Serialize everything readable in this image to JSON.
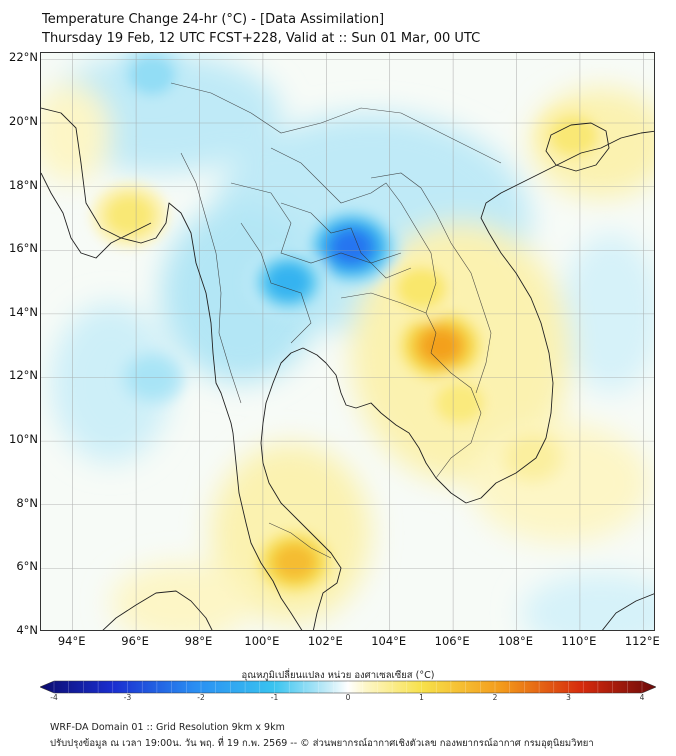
{
  "header": {
    "title": "Temperature Change 24-hr (°C) - [Data Assimilation]",
    "subtitle": "Thursday 19 Feb, 12 UTC FCST+228, Valid at :: Sun 01 Mar, 00 UTC"
  },
  "map": {
    "lat_labels": [
      "22°N",
      "20°N",
      "18°N",
      "16°N",
      "14°N",
      "12°N",
      "10°N",
      "8°N",
      "6°N",
      "4°N"
    ],
    "lon_labels": [
      "94°E",
      "96°E",
      "98°E",
      "100°E",
      "102°E",
      "104°E",
      "106°E",
      "108°E",
      "110°E",
      "112°E"
    ],
    "extent": {
      "lon_min": 93,
      "lon_max": 112.4,
      "lat_min": 4,
      "lat_max": 22.2
    },
    "anomalies": [
      {
        "name": "cooling-northeast-thailand",
        "lon": 102.8,
        "lat": 16.1,
        "value": -2.3
      },
      {
        "name": "cooling-central-thailand",
        "lon": 100.8,
        "lat": 15.0,
        "value": -1.6
      },
      {
        "name": "cooling-north-myanmar",
        "lon": 96.5,
        "lat": 21.5,
        "value": -0.8
      },
      {
        "name": "cooling-andaman",
        "lon": 96.5,
        "lat": 12.0,
        "value": -0.6
      },
      {
        "name": "warming-cambodia",
        "lon": 105.6,
        "lat": 13.0,
        "value": 2.3
      },
      {
        "name": "warming-south-laos",
        "lon": 105.0,
        "lat": 14.8,
        "value": 1.2
      },
      {
        "name": "warming-south-vietnam",
        "lon": 106.2,
        "lat": 11.2,
        "value": 1.0
      },
      {
        "name": "warming-malay-peninsula",
        "lon": 101.0,
        "lat": 6.2,
        "value": 1.9
      },
      {
        "name": "warming-hainan",
        "lon": 109.8,
        "lat": 19.6,
        "value": 1.1
      },
      {
        "name": "warming-bay-of-bengal",
        "lon": 95.8,
        "lat": 17.1,
        "value": 1.1
      },
      {
        "name": "warming-south-sea",
        "lon": 108.5,
        "lat": 9.5,
        "value": 0.6
      }
    ]
  },
  "colorbar": {
    "title": "อุณหภูมิเปลี่ยนแปลง หน่วย องศาเซลเซียส (°C)",
    "min": -4,
    "max": 4,
    "ticks": [
      "-4",
      "-3",
      "-2",
      "-1",
      "0",
      "1",
      "2",
      "3",
      "4"
    ]
  },
  "footer": {
    "line1": "WRF-DA Domain 01 :: Grid Resolution 9km x 9km",
    "line2": "ปรับปรุงข้อมูล ณ เวลา 19:00น. วัน พฤ. ที่ 19 ก.พ. 2569 -- © ส่วนพยากรณ์อากาศเชิงตัวเลข กองพยากรณ์อากาศ กรมอุตุนิยมวิทยา"
  }
}
